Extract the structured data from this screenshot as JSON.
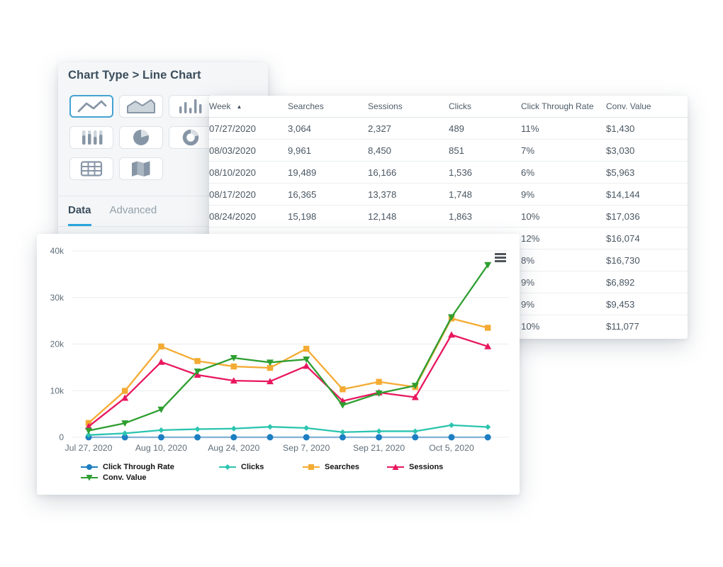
{
  "left_panel": {
    "title": "Chart Type > Line Chart",
    "chart_types": [
      {
        "name": "line-chart",
        "selected": true
      },
      {
        "name": "area-chart",
        "selected": false
      },
      {
        "name": "column-chart",
        "selected": false
      },
      {
        "name": "stacked-column-chart",
        "selected": false
      },
      {
        "name": "pie-chart",
        "selected": false
      },
      {
        "name": "donut-chart",
        "selected": false
      },
      {
        "name": "table-chart",
        "selected": false
      },
      {
        "name": "map-chart",
        "selected": false
      }
    ],
    "tabs": [
      {
        "label": "Data",
        "active": true
      },
      {
        "label": "Advanced",
        "active": false
      }
    ]
  },
  "data_table": {
    "columns": [
      "Week",
      "Searches",
      "Sessions",
      "Clicks",
      "Click Through Rate",
      "Conv. Value"
    ],
    "sort": {
      "column": "Week",
      "direction": "ascending",
      "icon": "sort-ascending-icon"
    },
    "rows": [
      [
        "07/27/2020",
        "3,064",
        "2,327",
        "489",
        "11%",
        "$1,430"
      ],
      [
        "08/03/2020",
        "9,961",
        "8,450",
        "851",
        "7%",
        "$3,030"
      ],
      [
        "08/10/2020",
        "19,489",
        "16,166",
        "1,536",
        "6%",
        "$5,963"
      ],
      [
        "08/17/2020",
        "16,365",
        "13,378",
        "1,748",
        "9%",
        "$14,144"
      ],
      [
        "08/24/2020",
        "15,198",
        "12,148",
        "1,863",
        "10%",
        "$17,036"
      ],
      [
        "",
        "",
        "",
        "",
        "12%",
        "$16,074"
      ],
      [
        "",
        "",
        "",
        "",
        "8%",
        "$16,730"
      ],
      [
        "",
        "",
        "",
        "",
        "9%",
        "$6,892"
      ],
      [
        "",
        "",
        "",
        "",
        "9%",
        "$9,453"
      ],
      [
        "",
        "",
        "",
        "",
        "10%",
        "$11,077"
      ]
    ]
  },
  "chart_panel": {
    "menu_icon": "hamburger-menu"
  },
  "chart_data": {
    "type": "line",
    "x": [
      "Jul 27, 2020",
      "Aug 3, 2020",
      "Aug 10, 2020",
      "Aug 17, 2020",
      "Aug 24, 2020",
      "Aug 31, 2020",
      "Sep 7, 2020",
      "Sep 14, 2020",
      "Sep 21, 2020",
      "Sep 28, 2020",
      "Oct 5, 2020",
      "Oct 12, 2020"
    ],
    "x_tick_labels": [
      "Jul 27, 2020",
      "Aug 10, 2020",
      "Aug 24, 2020",
      "Sep 7, 2020",
      "Sep 21, 2020",
      "Oct 5, 2020"
    ],
    "y_ticks": [
      {
        "label": "0",
        "value": 0
      },
      {
        "label": "10k",
        "value": 10000
      },
      {
        "label": "20k",
        "value": 20000
      },
      {
        "label": "30k",
        "value": 30000
      },
      {
        "label": "40k",
        "value": 40000
      }
    ],
    "ylim": [
      0,
      43000
    ],
    "grid": "horizontal",
    "legend_position": "bottom",
    "series": [
      {
        "name": "Click Through Rate",
        "marker": "circle",
        "color": "#1d7ec2",
        "line_color": "#86b3d6",
        "values": [
          11,
          7,
          6,
          9,
          10,
          12,
          8,
          9,
          9,
          10,
          10,
          9
        ]
      },
      {
        "name": "Clicks",
        "marker": "diamond",
        "color": "#2bc4af",
        "values": [
          489,
          851,
          1536,
          1748,
          1863,
          2250,
          2000,
          1100,
          1300,
          1300,
          2600,
          2200
        ]
      },
      {
        "name": "Searches",
        "marker": "square",
        "color": "#f4ab33",
        "values": [
          3064,
          9961,
          19489,
          16365,
          15198,
          14900,
          19000,
          10300,
          11900,
          10800,
          25500,
          23500
        ]
      },
      {
        "name": "Sessions",
        "marker": "triangle-up",
        "color": "#e8175f",
        "values": [
          2327,
          8450,
          16166,
          13378,
          12148,
          12000,
          15300,
          7800,
          9600,
          8600,
          22000,
          19500
        ]
      },
      {
        "name": "Conv. Value",
        "marker": "triangle-down",
        "color": "#2e9e30",
        "values": [
          1430,
          3030,
          5963,
          14144,
          17036,
          16074,
          16730,
          6892,
          9453,
          11077,
          25800,
          37000
        ]
      }
    ]
  }
}
